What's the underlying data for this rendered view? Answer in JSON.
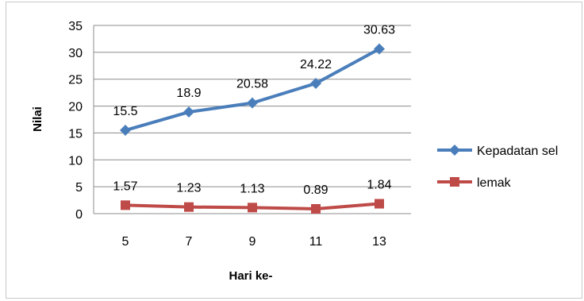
{
  "chart_data": {
    "type": "line",
    "title": "",
    "xlabel": "Hari ke-",
    "ylabel": "Nilai",
    "categories": [
      "5",
      "7",
      "9",
      "11",
      "13"
    ],
    "ylim": [
      0,
      35
    ],
    "yticks": [
      0,
      5,
      10,
      15,
      20,
      25,
      30,
      35
    ],
    "grid": true,
    "legend_position": "right",
    "series": [
      {
        "name": "Kepadatan sel",
        "values": [
          15.5,
          18.9,
          20.58,
          24.22,
          30.63
        ],
        "labels": [
          "15.5",
          "18.9",
          "20.58",
          "24.22",
          "30.63"
        ],
        "color": "#4a7ebb",
        "marker": "diamond"
      },
      {
        "name": "lemak",
        "values": [
          1.57,
          1.23,
          1.13,
          0.89,
          1.84
        ],
        "labels": [
          "1.57",
          "1.23",
          "1.13",
          "0.89",
          "1.84"
        ],
        "color": "#be4b48",
        "marker": "square"
      }
    ]
  }
}
